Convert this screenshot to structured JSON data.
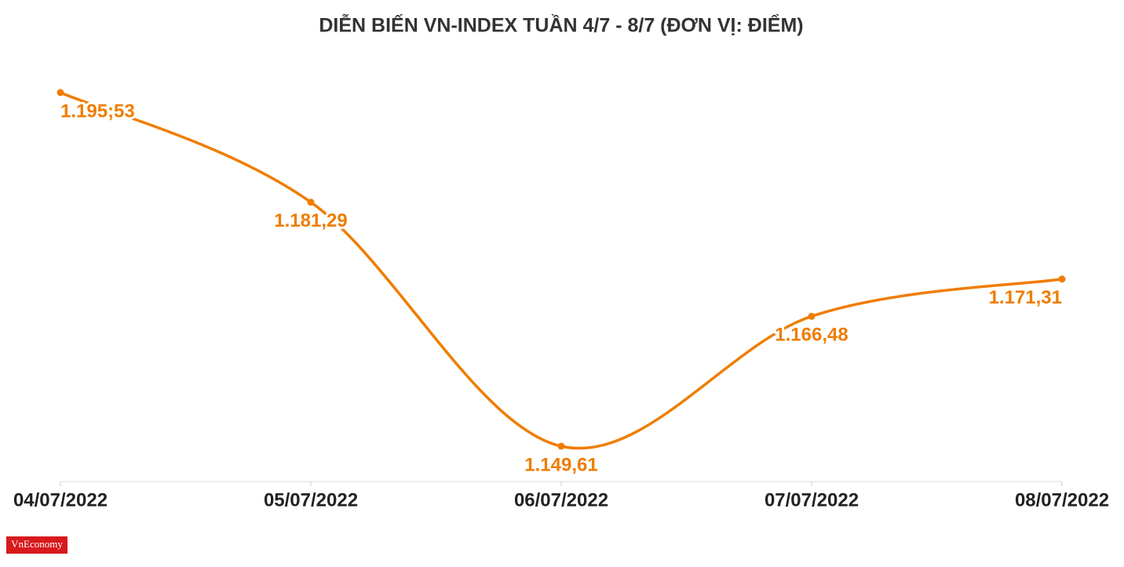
{
  "chart_data": {
    "type": "line",
    "title": "DIỄN BIẾN VN-INDEX TUẦN 4/7 - 8/7 (ĐƠN VỊ: ĐIỂM)",
    "categories": [
      "04/07/2022",
      "05/07/2022",
      "06/07/2022",
      "07/07/2022",
      "08/07/2022"
    ],
    "values": [
      1195.53,
      1181.29,
      1149.61,
      1166.48,
      1171.31
    ],
    "value_labels": [
      "1.195;53",
      "1.181,29",
      "1.149,61",
      "1.166,48",
      "1.171,31"
    ],
    "color": "#ef7d00",
    "grid": false,
    "logo": "VnEconomy"
  }
}
